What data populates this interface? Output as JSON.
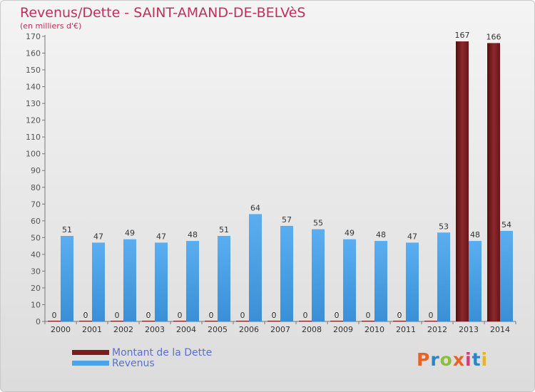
{
  "chart_data": {
    "type": "bar",
    "title": "Revenus/Dette - SAINT-AMAND-DE-BELVèS",
    "subtitle": "(en milliers d'€)",
    "xlabel": "",
    "ylabel": "",
    "ylim": [
      0,
      170
    ],
    "yticks": [
      0,
      10,
      20,
      30,
      40,
      50,
      60,
      70,
      80,
      90,
      100,
      110,
      120,
      130,
      140,
      150,
      160,
      170
    ],
    "categories": [
      "2000",
      "2001",
      "2002",
      "2003",
      "2004",
      "2005",
      "2006",
      "2007",
      "2008",
      "2009",
      "2010",
      "2011",
      "2012",
      "2013",
      "2014"
    ],
    "series": [
      {
        "name": "Montant de la Dette",
        "color": "#7a1e22",
        "values": [
          0,
          0,
          0,
          0,
          0,
          0,
          0,
          0,
          0,
          0,
          0,
          0,
          0,
          167,
          166
        ]
      },
      {
        "name": "Revenus",
        "color": "#4da3e4",
        "values": [
          51,
          47,
          49,
          47,
          48,
          51,
          64,
          57,
          55,
          49,
          48,
          47,
          53,
          48,
          54
        ]
      }
    ],
    "legend_position": "bottom-left",
    "grid": false
  },
  "brand": {
    "logo_text": "Proxiti",
    "colors": [
      "#e8632a",
      "#2b86c8",
      "#8cbf3f",
      "#e8632a",
      "#d23a7a",
      "#2b86c8",
      "#e8b52a"
    ]
  }
}
